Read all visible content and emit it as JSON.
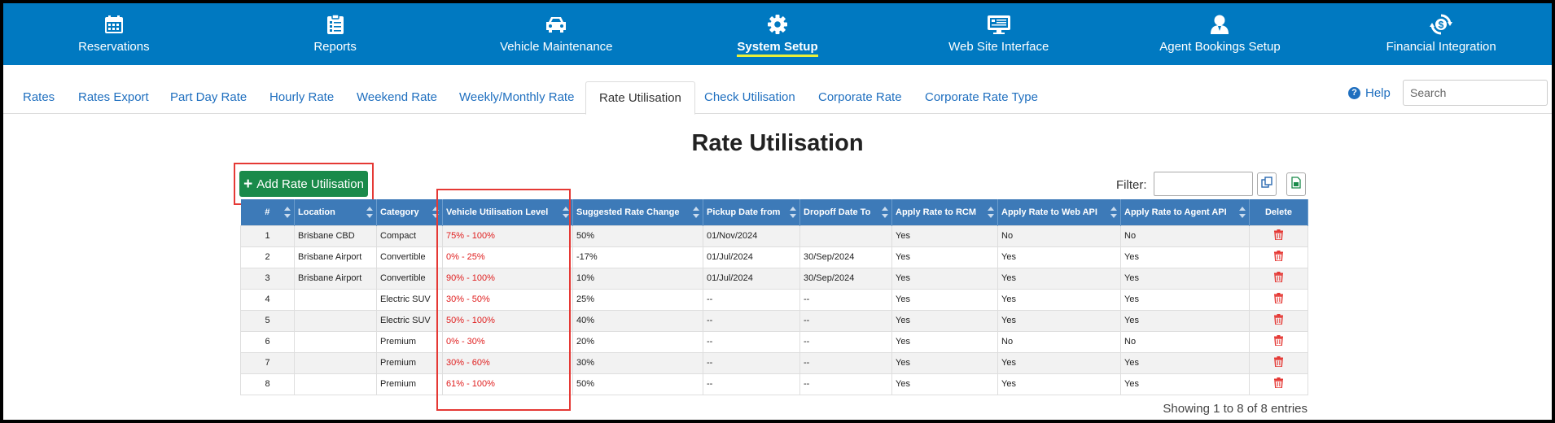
{
  "nav": {
    "items": [
      {
        "label": "Reservations",
        "icon": "calendar-icon",
        "active": false
      },
      {
        "label": "Reports",
        "icon": "clipboard-icon",
        "active": false
      },
      {
        "label": "Vehicle Maintenance",
        "icon": "car-icon",
        "active": false
      },
      {
        "label": "System Setup",
        "icon": "gear-icon",
        "active": true
      },
      {
        "label": "Web Site Interface",
        "icon": "monitor-icon",
        "active": false
      },
      {
        "label": "Agent Bookings Setup",
        "icon": "user-icon",
        "active": false
      },
      {
        "label": "Financial Integration",
        "icon": "dollar-sync-icon",
        "active": false
      }
    ]
  },
  "subtabs": {
    "items": [
      {
        "label": "Rates"
      },
      {
        "label": "Rates Export"
      },
      {
        "label": "Part Day Rate"
      },
      {
        "label": "Hourly Rate"
      },
      {
        "label": "Weekend Rate"
      },
      {
        "label": "Weekly/Monthly Rate"
      },
      {
        "label": "Rate Utilisation"
      },
      {
        "label": "Check Utilisation"
      },
      {
        "label": "Corporate Rate"
      },
      {
        "label": "Corporate Rate Type"
      }
    ],
    "active": "Rate Utilisation"
  },
  "help": {
    "label": "Help"
  },
  "search": {
    "placeholder": "Search",
    "value": ""
  },
  "page": {
    "title": "Rate Utilisation"
  },
  "toolbar": {
    "add_label": "Add Rate Utilisation",
    "filter_label": "Filter:",
    "filter_value": ""
  },
  "table": {
    "columns": [
      "#",
      "Location",
      "Category",
      "Vehicle Utilisation Level",
      "Suggested Rate Change",
      "Pickup Date from",
      "Dropoff Date To",
      "Apply Rate to RCM",
      "Apply Rate to Web API",
      "Apply Rate to Agent API",
      "Delete"
    ],
    "rows": [
      {
        "num": "1",
        "location": "Brisbane CBD",
        "category": "Compact",
        "level": "75% - 100%",
        "change": "50%",
        "pickup": "01/Nov/2024",
        "dropoff": "",
        "rcm": "Yes",
        "web": "No",
        "agent": "No"
      },
      {
        "num": "2",
        "location": "Brisbane Airport",
        "category": "Convertible",
        "level": "0% - 25%",
        "change": "-17%",
        "pickup": "01/Jul/2024",
        "dropoff": "30/Sep/2024",
        "rcm": "Yes",
        "web": "Yes",
        "agent": "Yes"
      },
      {
        "num": "3",
        "location": "Brisbane Airport",
        "category": "Convertible",
        "level": "90% - 100%",
        "change": "10%",
        "pickup": "01/Jul/2024",
        "dropoff": "30/Sep/2024",
        "rcm": "Yes",
        "web": "Yes",
        "agent": "Yes"
      },
      {
        "num": "4",
        "location": "",
        "category": "Electric SUV",
        "level": "30% - 50%",
        "change": "25%",
        "pickup": "--",
        "dropoff": "--",
        "rcm": "Yes",
        "web": "Yes",
        "agent": "Yes"
      },
      {
        "num": "5",
        "location": "",
        "category": "Electric SUV",
        "level": "50% - 100%",
        "change": "40%",
        "pickup": "--",
        "dropoff": "--",
        "rcm": "Yes",
        "web": "Yes",
        "agent": "Yes"
      },
      {
        "num": "6",
        "location": "",
        "category": "Premium",
        "level": "0% - 30%",
        "change": "20%",
        "pickup": "--",
        "dropoff": "--",
        "rcm": "Yes",
        "web": "No",
        "agent": "No"
      },
      {
        "num": "7",
        "location": "",
        "category": "Premium",
        "level": "30% - 60%",
        "change": "30%",
        "pickup": "--",
        "dropoff": "--",
        "rcm": "Yes",
        "web": "Yes",
        "agent": "Yes"
      },
      {
        "num": "8",
        "location": "",
        "category": "Premium",
        "level": "61% - 100%",
        "change": "50%",
        "pickup": "--",
        "dropoff": "--",
        "rcm": "Yes",
        "web": "Yes",
        "agent": "Yes"
      }
    ]
  },
  "footer": {
    "entries_info": "Showing 1 to 8 of 8 entries"
  },
  "colors": {
    "nav_bg": "#0079c1",
    "link": "#1f6fbf",
    "header_bg": "#3d7ab8",
    "add_button": "#1a8a4a",
    "level_text": "#e02020",
    "highlight": "#e53935",
    "delete_icon": "#e53935"
  }
}
